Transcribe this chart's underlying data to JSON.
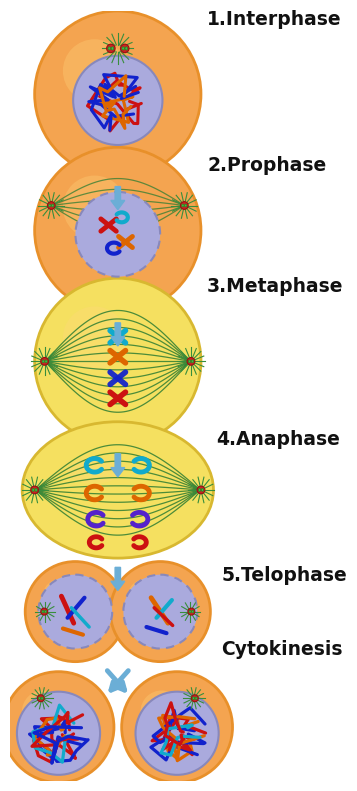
{
  "bg_color": "#FFFFFF",
  "cell_orange": "#F4A450",
  "cell_orange_edge": "#E8902A",
  "cell_yellow": "#F5E060",
  "cell_yellow_edge": "#D8B830",
  "nuc_color": "#AAAADD",
  "nuc_edge": "#8888BB",
  "arrow_color": "#6BAED6",
  "label_color": "#111111",
  "green_fiber": "#2E7D32",
  "aster_color": "#388E3C",
  "cent_red": "#CC2222",
  "cent_green": "#44BB44",
  "chr_red": "#CC1111",
  "chr_orange": "#DD6600",
  "chr_blue": "#1122CC",
  "chr_cyan": "#11AACC",
  "chr_purple": "#7722CC",
  "stages": [
    {
      "name": "1.Interphase"
    },
    {
      "name": "2.Prophase"
    },
    {
      "name": "3.Metaphase"
    },
    {
      "name": "4.Anaphase"
    },
    {
      "name": "5.Telophase"
    },
    {
      "name": "Cytokinesis"
    }
  ]
}
